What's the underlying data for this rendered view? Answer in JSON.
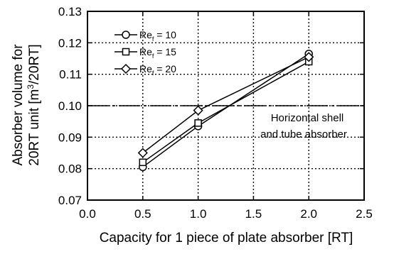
{
  "chart_data": {
    "type": "line",
    "x": [
      0.5,
      1.0,
      2.0
    ],
    "series": [
      {
        "name": "Ref = 10",
        "name_main": "Re",
        "name_sub": "f",
        "name_rest": " = 10",
        "marker": "circle",
        "values": [
          0.0805,
          0.0935,
          0.1165
        ]
      },
      {
        "name": "Ref = 15",
        "name_main": "Re",
        "name_sub": "f",
        "name_rest": " = 15",
        "marker": "square",
        "values": [
          0.082,
          0.0945,
          0.114
        ]
      },
      {
        "name": "Ref = 20",
        "name_main": "Re",
        "name_sub": "f",
        "name_rest": " = 20",
        "marker": "diamond",
        "values": [
          0.085,
          0.0985,
          0.1155
        ]
      }
    ],
    "reference_line": {
      "y": 0.1,
      "label_line1": "Horizontal shell",
      "label_line2": "and tube absorber"
    },
    "xlabel": "Capacity for 1 piece of plate absorber [RT]",
    "ylabel_line1": "Absorber volume for",
    "ylabel_line2_pre": "20RT unit [m",
    "ylabel_line2_sup": "3",
    "ylabel_line2_post": "/20RT]",
    "xlim": [
      0.0,
      2.5
    ],
    "ylim": [
      0.07,
      0.13
    ],
    "xticks": [
      0.0,
      0.5,
      1.0,
      1.5,
      2.0,
      2.5
    ],
    "yticks": [
      0.07,
      0.08,
      0.09,
      0.1,
      0.11,
      0.12,
      0.13
    ],
    "xtick_labels": [
      "0.0",
      "0.5",
      "1.0",
      "1.5",
      "2.0",
      "2.5"
    ],
    "ytick_labels": [
      "0.07",
      "0.08",
      "0.09",
      "0.10",
      "0.11",
      "0.12",
      "0.13"
    ],
    "grid": "dotted",
    "legend_position": "top-left"
  }
}
